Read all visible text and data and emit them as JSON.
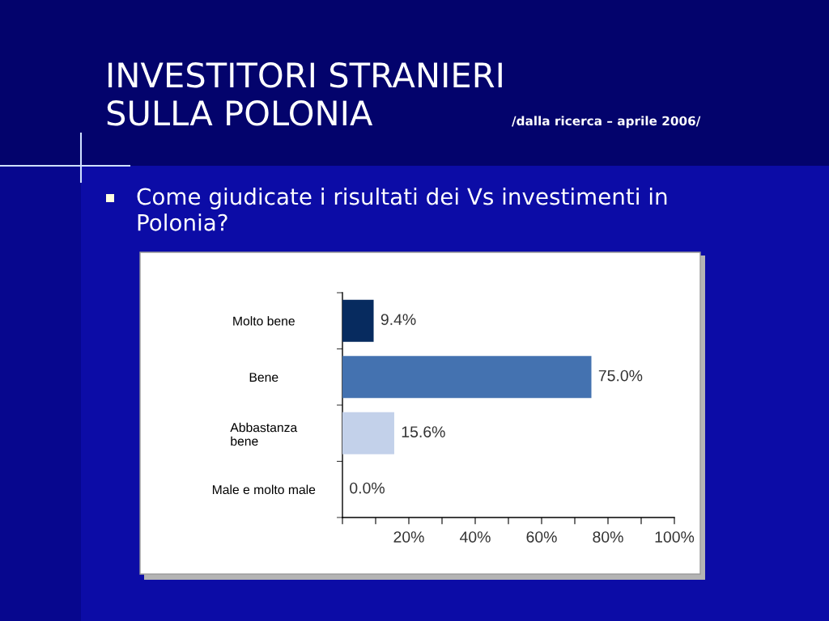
{
  "chart_data": {
    "type": "bar",
    "orientation": "horizontal",
    "title": "INVESTITORI STRANIERI\nSULLA POLONIA",
    "subtitle": "/dalla ricerca – aprile 2006/",
    "annotations": [
      "Come giudicate i risultati dei Vs investimenti in\nPolonia?"
    ],
    "categories": [
      "Molto bene",
      "Bene",
      "Abbastanza\nbene",
      "Male e molto male"
    ],
    "values": [
      9.4,
      75.0,
      15.6,
      0.0
    ],
    "colors": [
      "#072b5f",
      "#4472b0",
      "#c3d1ea",
      null
    ],
    "value_labels": [
      "9.4%",
      "75.0%",
      "15.6%",
      "0.0%"
    ],
    "xlim": [
      0,
      100
    ],
    "xticks": [
      {
        "value": 0,
        "label": null
      },
      {
        "value": 10,
        "label": null
      },
      {
        "value": 20,
        "label": "20%"
      },
      {
        "value": 30,
        "label": null
      },
      {
        "value": 40,
        "label": "40%"
      },
      {
        "value": 50,
        "label": null
      },
      {
        "value": 60,
        "label": "60%"
      },
      {
        "value": 70,
        "label": null
      },
      {
        "value": 80,
        "label": "80%"
      },
      {
        "value": 90,
        "label": null
      },
      {
        "value": 100,
        "label": "100%"
      }
    ],
    "grid": false
  }
}
